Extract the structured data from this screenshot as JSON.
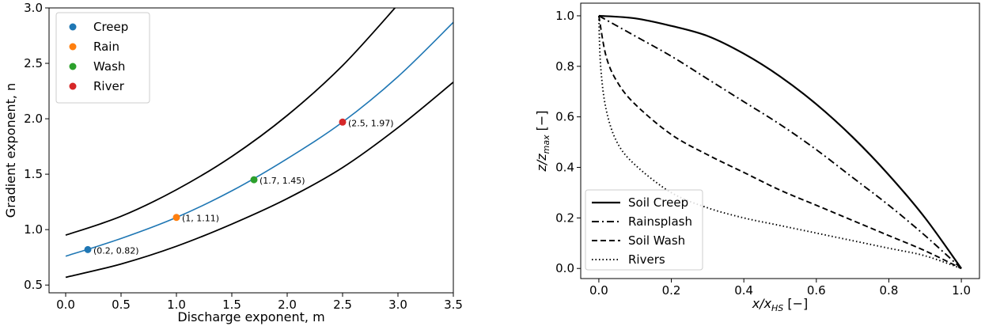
{
  "chart_data": [
    {
      "type": "line",
      "xlabel": "Discharge exponent, m",
      "ylabel": "Gradient exponent, n",
      "xlim": [
        -0.15,
        3.5
      ],
      "ylim": [
        0.43,
        3.0
      ],
      "xticks": [
        "0.0",
        "0.5",
        "1.0",
        "1.5",
        "2.0",
        "2.5",
        "3.0",
        "3.5"
      ],
      "yticks": [
        "0.5",
        "1.0",
        "1.5",
        "2.0",
        "2.5",
        "3.0"
      ],
      "legend_position": "upper-left",
      "grid": false,
      "series": [
        {
          "kind": "line",
          "color": "#000000",
          "x": [
            0.0,
            0.5,
            1.0,
            1.5,
            2.0,
            2.5,
            3.0
          ],
          "y": [
            0.95,
            1.12,
            1.36,
            1.66,
            2.03,
            2.48,
            3.03
          ]
        },
        {
          "kind": "line",
          "color": "#1f77b4",
          "x": [
            0.0,
            0.5,
            1.0,
            1.5,
            2.0,
            2.5,
            3.0,
            3.5
          ],
          "y": [
            0.76,
            0.92,
            1.11,
            1.35,
            1.64,
            1.97,
            2.38,
            2.87
          ]
        },
        {
          "kind": "line",
          "color": "#000000",
          "x": [
            0.0,
            0.5,
            1.0,
            1.5,
            2.0,
            2.5,
            3.0,
            3.5
          ],
          "y": [
            0.57,
            0.69,
            0.85,
            1.05,
            1.28,
            1.56,
            1.92,
            2.33
          ]
        },
        {
          "kind": "point",
          "name": "Creep",
          "color": "#1f77b4",
          "x": 0.2,
          "y": 0.82,
          "annotation": "(0.2, 0.82)"
        },
        {
          "kind": "point",
          "name": "Rain",
          "color": "#ff7f0e",
          "x": 1.0,
          "y": 1.11,
          "annotation": "(1, 1.11)"
        },
        {
          "kind": "point",
          "name": "Wash",
          "color": "#2ca02c",
          "x": 1.7,
          "y": 1.45,
          "annotation": "(1.7, 1.45)"
        },
        {
          "kind": "point",
          "name": "River",
          "color": "#d62728",
          "x": 2.5,
          "y": 1.97,
          "annotation": "(2.5, 1.97)"
        }
      ]
    },
    {
      "type": "line",
      "xlabel_base": "x/x",
      "xlabel_sub": "HS",
      "xlabel_suffix": " [−]",
      "ylabel_base": "z/z",
      "ylabel_sub": "max",
      "ylabel_suffix": " [−]",
      "xlim": [
        -0.05,
        1.05
      ],
      "ylim": [
        -0.04,
        1.05
      ],
      "xticks": [
        "0.0",
        "0.2",
        "0.4",
        "0.6",
        "0.8",
        "1.0"
      ],
      "yticks": [
        "0.0",
        "0.2",
        "0.4",
        "0.6",
        "0.8",
        "1.0"
      ],
      "legend_position": "lower-left",
      "grid": false,
      "series": [
        {
          "name": "Soil Creep",
          "dash": "solid",
          "color": "#000000",
          "x": [
            0.0,
            0.1,
            0.2,
            0.3,
            0.4,
            0.5,
            0.6,
            0.7,
            0.8,
            0.9,
            1.0
          ],
          "y": [
            1.0,
            0.99,
            0.96,
            0.92,
            0.85,
            0.76,
            0.65,
            0.52,
            0.37,
            0.2,
            0.0
          ]
        },
        {
          "name": "Rainsplash",
          "dash": "dashdot",
          "color": "#000000",
          "x": [
            0.0,
            0.1,
            0.2,
            0.3,
            0.4,
            0.5,
            0.6,
            0.7,
            0.8,
            0.9,
            1.0
          ],
          "y": [
            1.0,
            0.92,
            0.84,
            0.75,
            0.66,
            0.57,
            0.47,
            0.36,
            0.25,
            0.13,
            0.0
          ]
        },
        {
          "name": "Soil Wash",
          "dash": "dashed",
          "color": "#000000",
          "x": [
            0.0,
            0.02,
            0.05,
            0.1,
            0.2,
            0.3,
            0.4,
            0.5,
            0.6,
            0.7,
            0.8,
            0.9,
            1.0
          ],
          "y": [
            1.0,
            0.84,
            0.74,
            0.65,
            0.53,
            0.45,
            0.38,
            0.31,
            0.25,
            0.19,
            0.13,
            0.07,
            0.0
          ]
        },
        {
          "name": "Rivers",
          "dash": "dotted",
          "color": "#000000",
          "x": [
            0.0,
            0.005,
            0.02,
            0.05,
            0.1,
            0.2,
            0.3,
            0.4,
            0.5,
            0.6,
            0.7,
            0.8,
            0.9,
            1.0
          ],
          "y": [
            1.0,
            0.8,
            0.63,
            0.5,
            0.41,
            0.3,
            0.24,
            0.2,
            0.17,
            0.14,
            0.11,
            0.08,
            0.05,
            0.0
          ]
        }
      ]
    }
  ]
}
